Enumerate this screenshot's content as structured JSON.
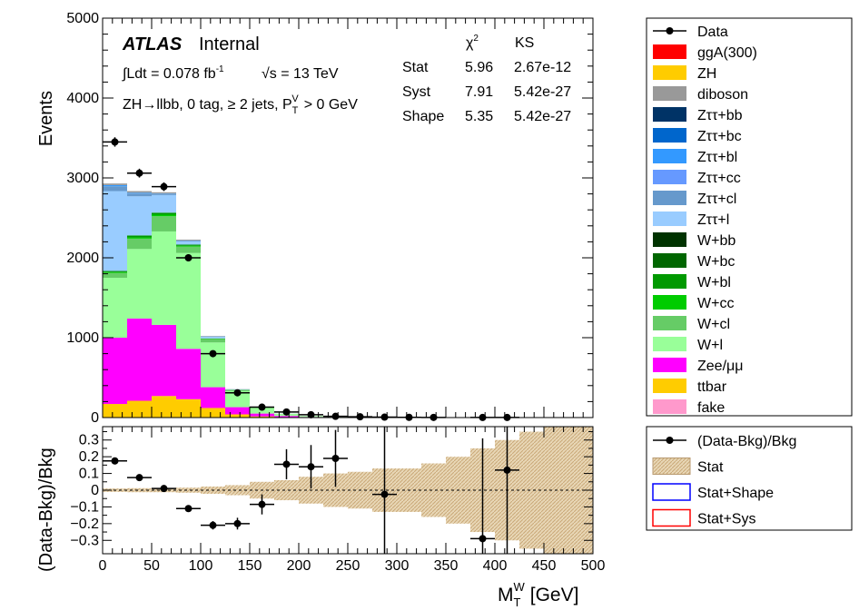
{
  "colors": {
    "data": "#000000",
    "ggA": "#ff0000",
    "ZH": "#ffcc00",
    "diboson": "#999999",
    "Zttbb": "#003366",
    "Zttbc": "#0066cc",
    "Zttbl": "#3399ff",
    "Zttcc": "#6699ff",
    "Zttcl": "#6699cc",
    "Zttl": "#99ccff",
    "Wbb": "#003300",
    "Wbc": "#006600",
    "Wbl": "#009900",
    "Wcc": "#00cc00",
    "Wcl": "#66cc66",
    "Wl": "#99ff99",
    "Zeemm": "#ff00ff",
    "ttbar": "#ffcc00",
    "fake": "#ff99cc",
    "stat_band": "#d2b48c",
    "shape_box": "#0000ff",
    "sys_box": "#ff0000"
  },
  "header": {
    "atlas": "ATLAS",
    "internal": "Internal",
    "lumi": "∫Ldt = 0.078 fb",
    "lumi_sup": "-1",
    "energy": "√s = 13 TeV",
    "region": "ZH→llbb, 0 tag, ≥ 2 jets,  P",
    "region_sub": "T",
    "region_sup": "V",
    "region_cut": "> 0 GeV"
  },
  "stats_table": {
    "chi2_header": "χ",
    "chi2_sup": "2",
    "ks_header": "KS",
    "rows": [
      {
        "label": "Stat",
        "chi2": "5.96",
        "ks": "2.67e-12"
      },
      {
        "label": "Syst",
        "chi2": "7.91",
        "ks": "5.42e-27"
      },
      {
        "label": "Shape",
        "chi2": "5.35",
        "ks": "5.42e-27"
      }
    ]
  },
  "legend_main": [
    {
      "label": "Data",
      "key": "data",
      "style": "marker"
    },
    {
      "label": "ggA(300)",
      "key": "ggA",
      "style": "box"
    },
    {
      "label": "ZH",
      "key": "ZH",
      "style": "box"
    },
    {
      "label": "diboson",
      "key": "diboson",
      "style": "box"
    },
    {
      "label": "Zττ+bb",
      "key": "Zttbb",
      "style": "box"
    },
    {
      "label": "Zττ+bc",
      "key": "Zttbc",
      "style": "box"
    },
    {
      "label": "Zττ+bl",
      "key": "Zttbl",
      "style": "box"
    },
    {
      "label": "Zττ+cc",
      "key": "Zttcc",
      "style": "box"
    },
    {
      "label": "Zττ+cl",
      "key": "Zttcl",
      "style": "box"
    },
    {
      "label": "Zττ+l",
      "key": "Zttl",
      "style": "box"
    },
    {
      "label": "W+bb",
      "key": "Wbb",
      "style": "box"
    },
    {
      "label": "W+bc",
      "key": "Wbc",
      "style": "box"
    },
    {
      "label": "W+bl",
      "key": "Wbl",
      "style": "box"
    },
    {
      "label": "W+cc",
      "key": "Wcc",
      "style": "box"
    },
    {
      "label": "W+cl",
      "key": "Wcl",
      "style": "box"
    },
    {
      "label": "W+l",
      "key": "Wl",
      "style": "box"
    },
    {
      "label": "Zee/μμ",
      "key": "Zeemm",
      "style": "box"
    },
    {
      "label": "ttbar",
      "key": "ttbar",
      "style": "box"
    },
    {
      "label": "fake",
      "key": "fake",
      "style": "box"
    }
  ],
  "legend_ratio": [
    {
      "label": "(Data-Bkg)/Bkg",
      "key": "data",
      "style": "marker"
    },
    {
      "label": "Stat",
      "key": "stat_band",
      "style": "hatch"
    },
    {
      "label": "Stat+Shape",
      "key": "shape_box",
      "style": "outline"
    },
    {
      "label": "Stat+Sys",
      "key": "sys_box",
      "style": "outline"
    }
  ],
  "chart_data": [
    {
      "type": "bar",
      "stacked": true,
      "ylabel": "Events",
      "ylim": [
        0,
        5000
      ],
      "yticks": [
        "0",
        "1000",
        "2000",
        "3000",
        "4000",
        "5000"
      ],
      "bin_edges": [
        0,
        25,
        50,
        75,
        100,
        125,
        150,
        175,
        200,
        225,
        250,
        275,
        300,
        325,
        350,
        375,
        400,
        425,
        450,
        475,
        500
      ],
      "series": [
        {
          "name": "ttbar",
          "key": "ttbar",
          "values": [
            170,
            210,
            270,
            230,
            120,
            40,
            15,
            5,
            2,
            1,
            0,
            0,
            0,
            0,
            0,
            0,
            0,
            0,
            0,
            0
          ]
        },
        {
          "name": "Zee/μμ",
          "key": "Zeemm",
          "values": [
            830,
            1030,
            890,
            630,
            260,
            90,
            35,
            15,
            6,
            3,
            1,
            1,
            0,
            0,
            0,
            0,
            0,
            0,
            0,
            0
          ]
        },
        {
          "name": "W+l",
          "key": "Wl",
          "values": [
            750,
            870,
            1170,
            1200,
            560,
            200,
            70,
            25,
            10,
            4,
            2,
            1,
            0,
            0,
            0,
            0,
            0,
            0,
            0,
            0
          ]
        },
        {
          "name": "W+cl",
          "key": "Wcl",
          "values": [
            60,
            130,
            190,
            80,
            40,
            15,
            5,
            2,
            1,
            0,
            0,
            0,
            0,
            0,
            0,
            0,
            0,
            0,
            0,
            0
          ]
        },
        {
          "name": "W+cc",
          "key": "Wcc",
          "values": [
            10,
            15,
            20,
            10,
            5,
            2,
            1,
            0,
            0,
            0,
            0,
            0,
            0,
            0,
            0,
            0,
            0,
            0,
            0,
            0
          ]
        },
        {
          "name": "W+bl",
          "key": "Wbl",
          "values": [
            15,
            25,
            25,
            15,
            6,
            2,
            1,
            0,
            0,
            0,
            0,
            0,
            0,
            0,
            0,
            0,
            0,
            0,
            0,
            0
          ]
        },
        {
          "name": "Zττ+l",
          "key": "Zttl",
          "values": [
            1000,
            490,
            220,
            40,
            20,
            5,
            2,
            1,
            0,
            0,
            0,
            0,
            0,
            0,
            0,
            0,
            0,
            0,
            0,
            0
          ]
        },
        {
          "name": "Zττ+cl",
          "key": "Zttcl",
          "values": [
            60,
            35,
            15,
            10,
            4,
            1,
            0,
            0,
            0,
            0,
            0,
            0,
            0,
            0,
            0,
            0,
            0,
            0,
            0,
            0
          ]
        },
        {
          "name": "Zττ+bl",
          "key": "Zttbl",
          "values": [
            15,
            10,
            5,
            3,
            1,
            0,
            0,
            0,
            0,
            0,
            0,
            0,
            0,
            0,
            0,
            0,
            0,
            0,
            0,
            0
          ]
        },
        {
          "name": "diboson",
          "key": "diboson",
          "values": [
            20,
            20,
            15,
            10,
            5,
            2,
            1,
            0,
            0,
            0,
            0,
            0,
            0,
            0,
            0,
            0,
            0,
            0,
            0,
            0
          ]
        }
      ],
      "data": {
        "name": "Data",
        "x": [
          12.5,
          37.5,
          62.5,
          87.5,
          112.5,
          137.5,
          162.5,
          187.5,
          212.5,
          237.5,
          262.5,
          287.5,
          312.5,
          337.5,
          362.5,
          387.5,
          412.5,
          437.5,
          462.5,
          487.5
        ],
        "y": [
          3450,
          3060,
          2890,
          2000,
          800,
          310,
          130,
          70,
          35,
          15,
          10,
          5,
          3,
          2,
          1,
          1,
          1,
          0,
          0,
          0
        ],
        "show": [
          true,
          true,
          true,
          true,
          true,
          true,
          true,
          true,
          true,
          true,
          true,
          true,
          true,
          true,
          false,
          true,
          true,
          false,
          false,
          false
        ]
      }
    },
    {
      "type": "scatter",
      "ylabel": "(Data-Bkg)/Bkg",
      "xlabel": "M",
      "xlabel_sub": "T",
      "xlabel_sup": "W",
      "xlabel_unit": "[GeV]",
      "xlim": [
        0,
        500
      ],
      "ylim": [
        -0.38,
        0.38
      ],
      "xticks": [
        "0",
        "50",
        "100",
        "150",
        "200",
        "250",
        "300",
        "350",
        "400",
        "450",
        "500"
      ],
      "yticks": [
        "−0.3",
        "−0.2",
        "−0.1",
        "0",
        "0.1",
        "0.2",
        "0.3"
      ],
      "x": [
        12.5,
        37.5,
        62.5,
        87.5,
        112.5,
        137.5,
        162.5,
        187.5,
        212.5,
        237.5,
        287.5,
        387.5,
        412.5
      ],
      "y": [
        0.175,
        0.075,
        0.01,
        -0.11,
        -0.21,
        -0.2,
        -0.085,
        0.155,
        0.14,
        0.19,
        -0.025,
        -0.29,
        0.12
      ],
      "yerr": [
        0.013,
        0.015,
        0.015,
        0.015,
        0.025,
        0.035,
        0.06,
        0.09,
        0.13,
        0.17,
        0.6,
        0.6,
        0.6
      ],
      "stat_band": [
        0.01,
        0.012,
        0.012,
        0.015,
        0.022,
        0.03,
        0.05,
        0.06,
        0.08,
        0.1,
        0.11,
        0.13,
        0.13,
        0.16,
        0.2,
        0.25,
        0.3,
        0.35,
        0.38,
        0.38
      ]
    }
  ]
}
